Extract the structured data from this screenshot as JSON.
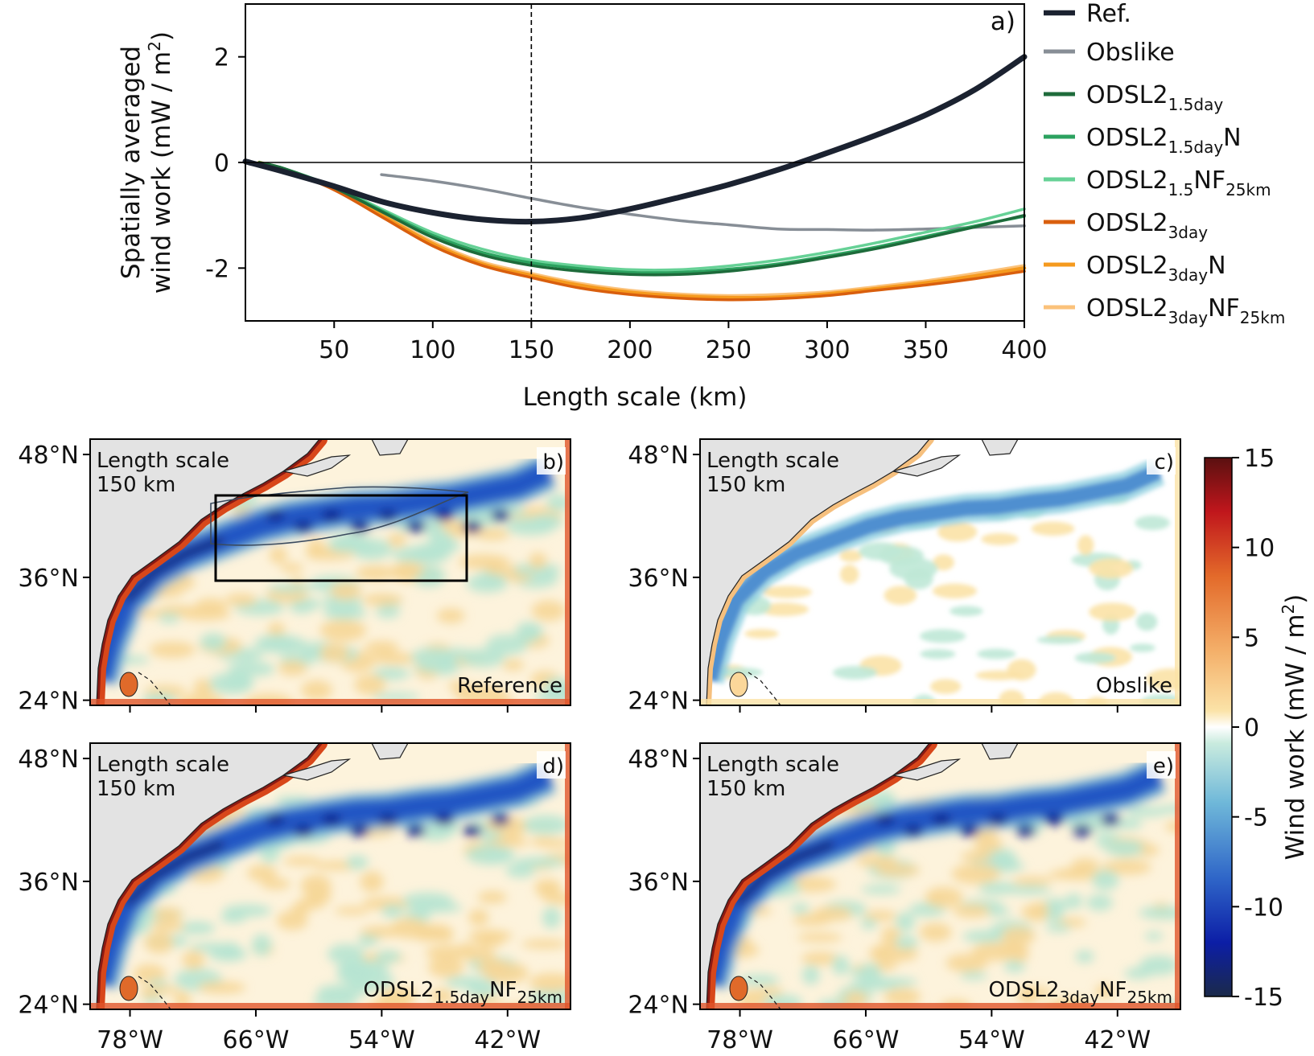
{
  "chart_data": [
    {
      "panel": "a)",
      "type": "line",
      "xlabel": "Length scale (km)",
      "ylabel_line1": "Spatially averaged",
      "ylabel_line2": "wind work (mW / m",
      "ylabel_sup": "2",
      "ylabel_end": ")",
      "xlim": [
        5,
        400
      ],
      "ylim": [
        -3,
        3
      ],
      "xticks": [
        50,
        100,
        150,
        200,
        250,
        300,
        350,
        400
      ],
      "yticks": [
        {
          "v": 2,
          "label": "2"
        },
        {
          "v": 0,
          "label": "0"
        },
        {
          "v": -2,
          "label": "-2"
        }
      ],
      "zero_line": true,
      "vline_x": 150,
      "legend_position": "right",
      "series": [
        {
          "name": "Ref.",
          "base": "Ref.",
          "sub": "",
          "after": "",
          "sub2": "",
          "color": "#1b2230",
          "width": 7,
          "points": [
            [
              5,
              0.02
            ],
            [
              25,
              -0.18
            ],
            [
              50,
              -0.45
            ],
            [
              75,
              -0.75
            ],
            [
              100,
              -0.95
            ],
            [
              125,
              -1.08
            ],
            [
              150,
              -1.12
            ],
            [
              175,
              -1.05
            ],
            [
              200,
              -0.88
            ],
            [
              225,
              -0.66
            ],
            [
              250,
              -0.42
            ],
            [
              275,
              -0.14
            ],
            [
              300,
              0.18
            ],
            [
              325,
              0.52
            ],
            [
              350,
              0.9
            ],
            [
              375,
              1.38
            ],
            [
              400,
              2.0
            ]
          ]
        },
        {
          "name": "Obslike",
          "base": "Obslike",
          "sub": "",
          "after": "",
          "sub2": "",
          "color": "#878e96",
          "width": 3.5,
          "points": [
            [
              74,
              -0.23
            ],
            [
              100,
              -0.35
            ],
            [
              125,
              -0.5
            ],
            [
              150,
              -0.68
            ],
            [
              175,
              -0.85
            ],
            [
              200,
              -0.98
            ],
            [
              225,
              -1.1
            ],
            [
              250,
              -1.18
            ],
            [
              275,
              -1.26
            ],
            [
              300,
              -1.27
            ],
            [
              325,
              -1.28
            ],
            [
              350,
              -1.26
            ],
            [
              375,
              -1.23
            ],
            [
              400,
              -1.2
            ]
          ]
        },
        {
          "name": "ODSL2 1.5day",
          "base": "ODSL2",
          "sub": "1.5day",
          "after": "",
          "sub2": "",
          "color": "#1e6b3b",
          "width": 3.5,
          "points": [
            [
              12,
              0.0
            ],
            [
              25,
              -0.12
            ],
            [
              50,
              -0.48
            ],
            [
              75,
              -0.95
            ],
            [
              100,
              -1.42
            ],
            [
              125,
              -1.75
            ],
            [
              150,
              -1.95
            ],
            [
              175,
              -2.06
            ],
            [
              200,
              -2.12
            ],
            [
              225,
              -2.12
            ],
            [
              250,
              -2.06
            ],
            [
              275,
              -1.95
            ],
            [
              300,
              -1.8
            ],
            [
              325,
              -1.63
            ],
            [
              350,
              -1.43
            ],
            [
              375,
              -1.22
            ],
            [
              400,
              -1.0
            ]
          ]
        },
        {
          "name": "ODSL2 1.5dayN",
          "base": "ODSL2",
          "sub": "1.5day",
          "after": "N",
          "sub2": "",
          "color": "#2ca25f",
          "width": 3.5,
          "points": [
            [
              12,
              0.0
            ],
            [
              25,
              -0.12
            ],
            [
              50,
              -0.47
            ],
            [
              75,
              -0.93
            ],
            [
              100,
              -1.38
            ],
            [
              125,
              -1.7
            ],
            [
              150,
              -1.9
            ],
            [
              175,
              -2.01
            ],
            [
              200,
              -2.08
            ],
            [
              225,
              -2.08
            ],
            [
              250,
              -2.02
            ],
            [
              275,
              -1.92
            ],
            [
              300,
              -1.77
            ],
            [
              325,
              -1.6
            ],
            [
              350,
              -1.4
            ],
            [
              375,
              -1.2
            ],
            [
              400,
              -1.02
            ]
          ]
        },
        {
          "name": "ODSL2 1.5NF25km",
          "base": "ODSL2",
          "sub": "1.5",
          "after": "NF",
          "sub2": "25km",
          "color": "#66d196",
          "width": 3.5,
          "points": [
            [
              12,
              0.0
            ],
            [
              25,
              -0.12
            ],
            [
              50,
              -0.46
            ],
            [
              75,
              -0.9
            ],
            [
              100,
              -1.33
            ],
            [
              125,
              -1.64
            ],
            [
              150,
              -1.85
            ],
            [
              175,
              -1.96
            ],
            [
              200,
              -2.03
            ],
            [
              225,
              -2.03
            ],
            [
              250,
              -1.96
            ],
            [
              275,
              -1.85
            ],
            [
              300,
              -1.7
            ],
            [
              325,
              -1.52
            ],
            [
              350,
              -1.32
            ],
            [
              375,
              -1.12
            ],
            [
              400,
              -0.88
            ]
          ]
        },
        {
          "name": "ODSL2 3day",
          "base": "ODSL2",
          "sub": "3day",
          "after": "",
          "sub2": "",
          "color": "#d95f0e",
          "width": 3.5,
          "points": [
            [
              12,
              0.0
            ],
            [
              25,
              -0.14
            ],
            [
              50,
              -0.52
            ],
            [
              75,
              -1.05
            ],
            [
              100,
              -1.58
            ],
            [
              125,
              -1.95
            ],
            [
              150,
              -2.18
            ],
            [
              175,
              -2.38
            ],
            [
              200,
              -2.5
            ],
            [
              225,
              -2.57
            ],
            [
              250,
              -2.6
            ],
            [
              275,
              -2.58
            ],
            [
              300,
              -2.52
            ],
            [
              325,
              -2.42
            ],
            [
              350,
              -2.32
            ],
            [
              375,
              -2.2
            ],
            [
              400,
              -2.06
            ]
          ]
        },
        {
          "name": "ODSL2 3dayN",
          "base": "ODSL2",
          "sub": "3day",
          "after": "N",
          "sub2": "",
          "color": "#f59a1e",
          "width": 4.5,
          "points": [
            [
              12,
              0.0
            ],
            [
              25,
              -0.14
            ],
            [
              50,
              -0.5
            ],
            [
              75,
              -1.02
            ],
            [
              100,
              -1.54
            ],
            [
              125,
              -1.92
            ],
            [
              150,
              -2.14
            ],
            [
              175,
              -2.33
            ],
            [
              200,
              -2.46
            ],
            [
              225,
              -2.53
            ],
            [
              250,
              -2.56
            ],
            [
              275,
              -2.55
            ],
            [
              300,
              -2.49
            ],
            [
              325,
              -2.39
            ],
            [
              350,
              -2.28
            ],
            [
              375,
              -2.15
            ],
            [
              400,
              -2.0
            ]
          ]
        },
        {
          "name": "ODSL2 3dayNF25km",
          "base": "ODSL2",
          "sub": "3day",
          "after": "NF",
          "sub2": "25km",
          "color": "#fbc27a",
          "width": 3.5,
          "points": [
            [
              12,
              0.0
            ],
            [
              25,
              -0.13
            ],
            [
              50,
              -0.48
            ],
            [
              75,
              -0.99
            ],
            [
              100,
              -1.5
            ],
            [
              125,
              -1.88
            ],
            [
              150,
              -2.1
            ],
            [
              175,
              -2.29
            ],
            [
              200,
              -2.42
            ],
            [
              225,
              -2.49
            ],
            [
              250,
              -2.52
            ],
            [
              275,
              -2.5
            ],
            [
              300,
              -2.45
            ],
            [
              325,
              -2.35
            ],
            [
              350,
              -2.24
            ],
            [
              375,
              -2.1
            ],
            [
              400,
              -1.95
            ]
          ]
        }
      ]
    },
    {
      "type": "heatmap",
      "map_panels": [
        {
          "id": "b)",
          "scale_label_1": "Length scale",
          "scale_label_2": "150 km",
          "name_base": "Reference",
          "name_sub": "",
          "name_after": "",
          "name_sub2": "",
          "box": true
        },
        {
          "id": "c)",
          "scale_label_1": "Length scale",
          "scale_label_2": "150 km",
          "name_base": "Obslike",
          "name_sub": "",
          "name_after": "",
          "name_sub2": "",
          "box": false
        },
        {
          "id": "d)",
          "scale_label_1": "Length scale",
          "scale_label_2": "150 km",
          "name_base": "ODSL2",
          "name_sub": "1.5day",
          "name_after": "NF",
          "name_sub2": "25km",
          "box": false
        },
        {
          "id": "e)",
          "scale_label_1": "Length scale",
          "scale_label_2": "150 km",
          "name_base": "ODSL2",
          "name_sub": "3day",
          "name_after": "NF",
          "name_sub2": "25km",
          "box": false
        }
      ],
      "lat_ticks": [
        "48°N",
        "36°N",
        "24°N"
      ],
      "lon_ticks": [
        "78°W",
        "66°W",
        "54°W",
        "42°W"
      ],
      "colorbar": {
        "label": "Wind work (mW / m",
        "label_sup": "2",
        "label_end": ")",
        "ticks": [
          {
            "v": 15,
            "label": "15"
          },
          {
            "v": 10,
            "label": "10"
          },
          {
            "v": 5,
            "label": "5"
          },
          {
            "v": 0,
            "label": "0"
          },
          {
            "v": -5,
            "label": "-5"
          },
          {
            "v": -10,
            "label": "-10"
          },
          {
            "v": -15,
            "label": "-15"
          }
        ],
        "range": [
          -15,
          15
        ],
        "stops": [
          "#1b2a4a",
          "#0c1ea6",
          "#2f66c8",
          "#6fb8d9",
          "#c9ebde",
          "#ffffff",
          "#fbe3a8",
          "#f4b06a",
          "#e36a2a",
          "#c0161c",
          "#5a1010"
        ]
      }
    }
  ]
}
